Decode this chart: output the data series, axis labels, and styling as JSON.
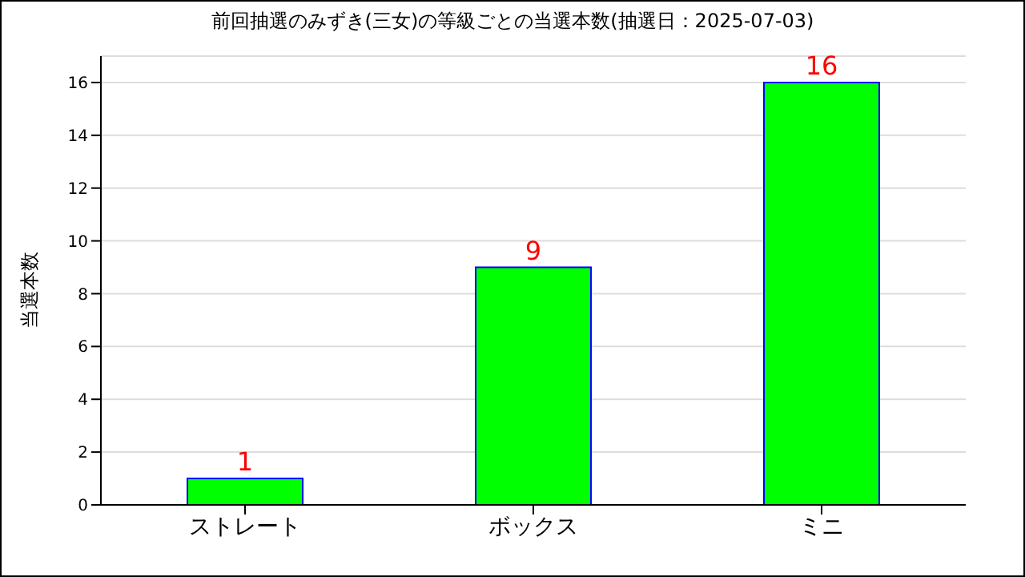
{
  "chart_data": {
    "type": "bar",
    "title": "前回抽選のみずき(三女)の等級ごとの当選本数(抽選日：2025-07-03)",
    "ylabel": "当選本数",
    "categories": [
      "ストレート",
      "ボックス",
      "ミニ"
    ],
    "series": [
      {
        "color": "#00ff00",
        "values": [
          1,
          9,
          16
        ]
      }
    ],
    "ylim": [
      0,
      17
    ],
    "yticks": [
      0,
      2,
      4,
      6,
      8,
      10,
      12,
      14,
      16
    ],
    "grid": "y",
    "data_labels": true
  }
}
